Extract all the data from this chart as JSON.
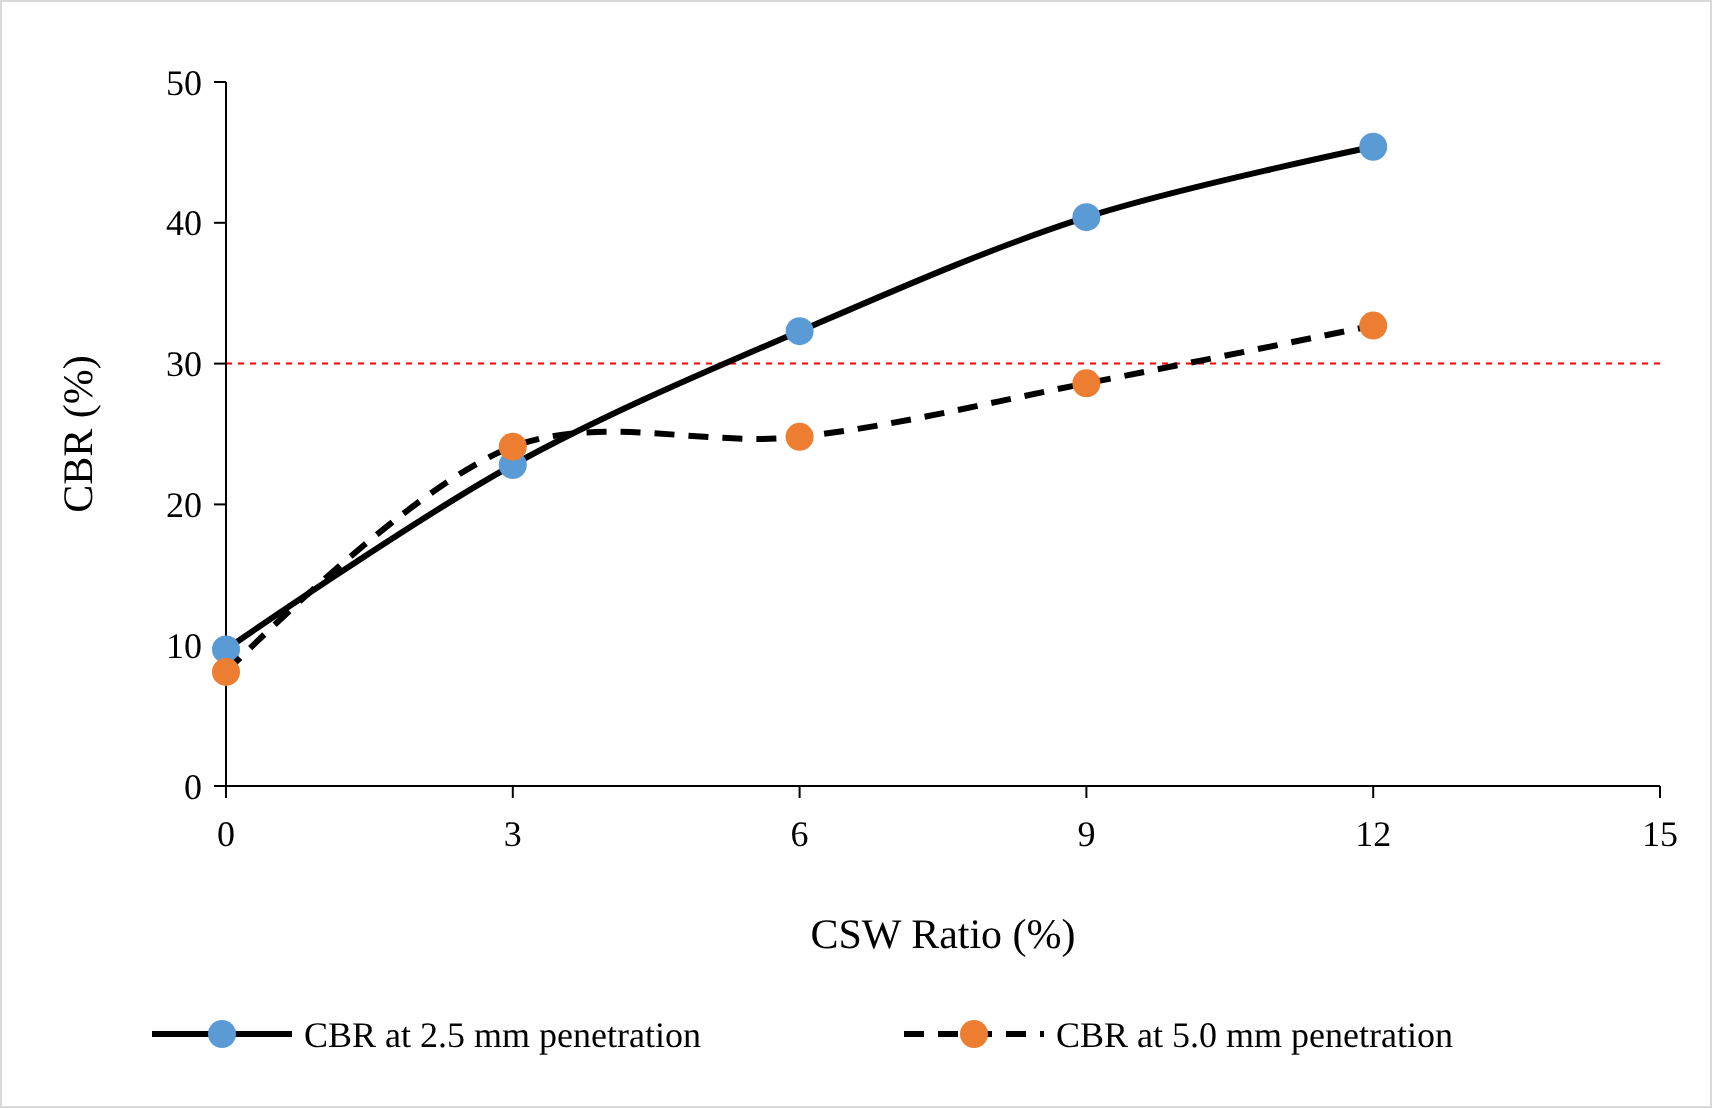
{
  "chart_data": {
    "type": "line",
    "xlabel": "CSW Ratio (%)",
    "ylabel": "CBR (%)",
    "x": [
      0,
      3,
      6,
      9,
      12
    ],
    "series": [
      {
        "name": "CBR at 2.5 mm penetration",
        "color": "#5b9bd5",
        "line_style": "solid",
        "values": [
          9.7,
          22.8,
          32.3,
          40.4,
          45.4
        ]
      },
      {
        "name": "CBR at 5.0 mm penetration",
        "color": "#ed7d31",
        "line_style": "dashed",
        "values": [
          8.1,
          24.1,
          24.8,
          28.6,
          32.7
        ]
      }
    ],
    "xlim": [
      0,
      15
    ],
    "xticks": [
      0,
      3,
      6,
      9,
      12,
      15
    ],
    "ylim": [
      0,
      50
    ],
    "yticks": [
      0,
      10,
      20,
      30,
      40,
      50
    ],
    "ref_lines": [
      {
        "axis": "y",
        "value": 30,
        "color": "#ff0000",
        "line_style": "dotted"
      }
    ],
    "grid": false,
    "legend": "bottom",
    "marker": "circle"
  }
}
